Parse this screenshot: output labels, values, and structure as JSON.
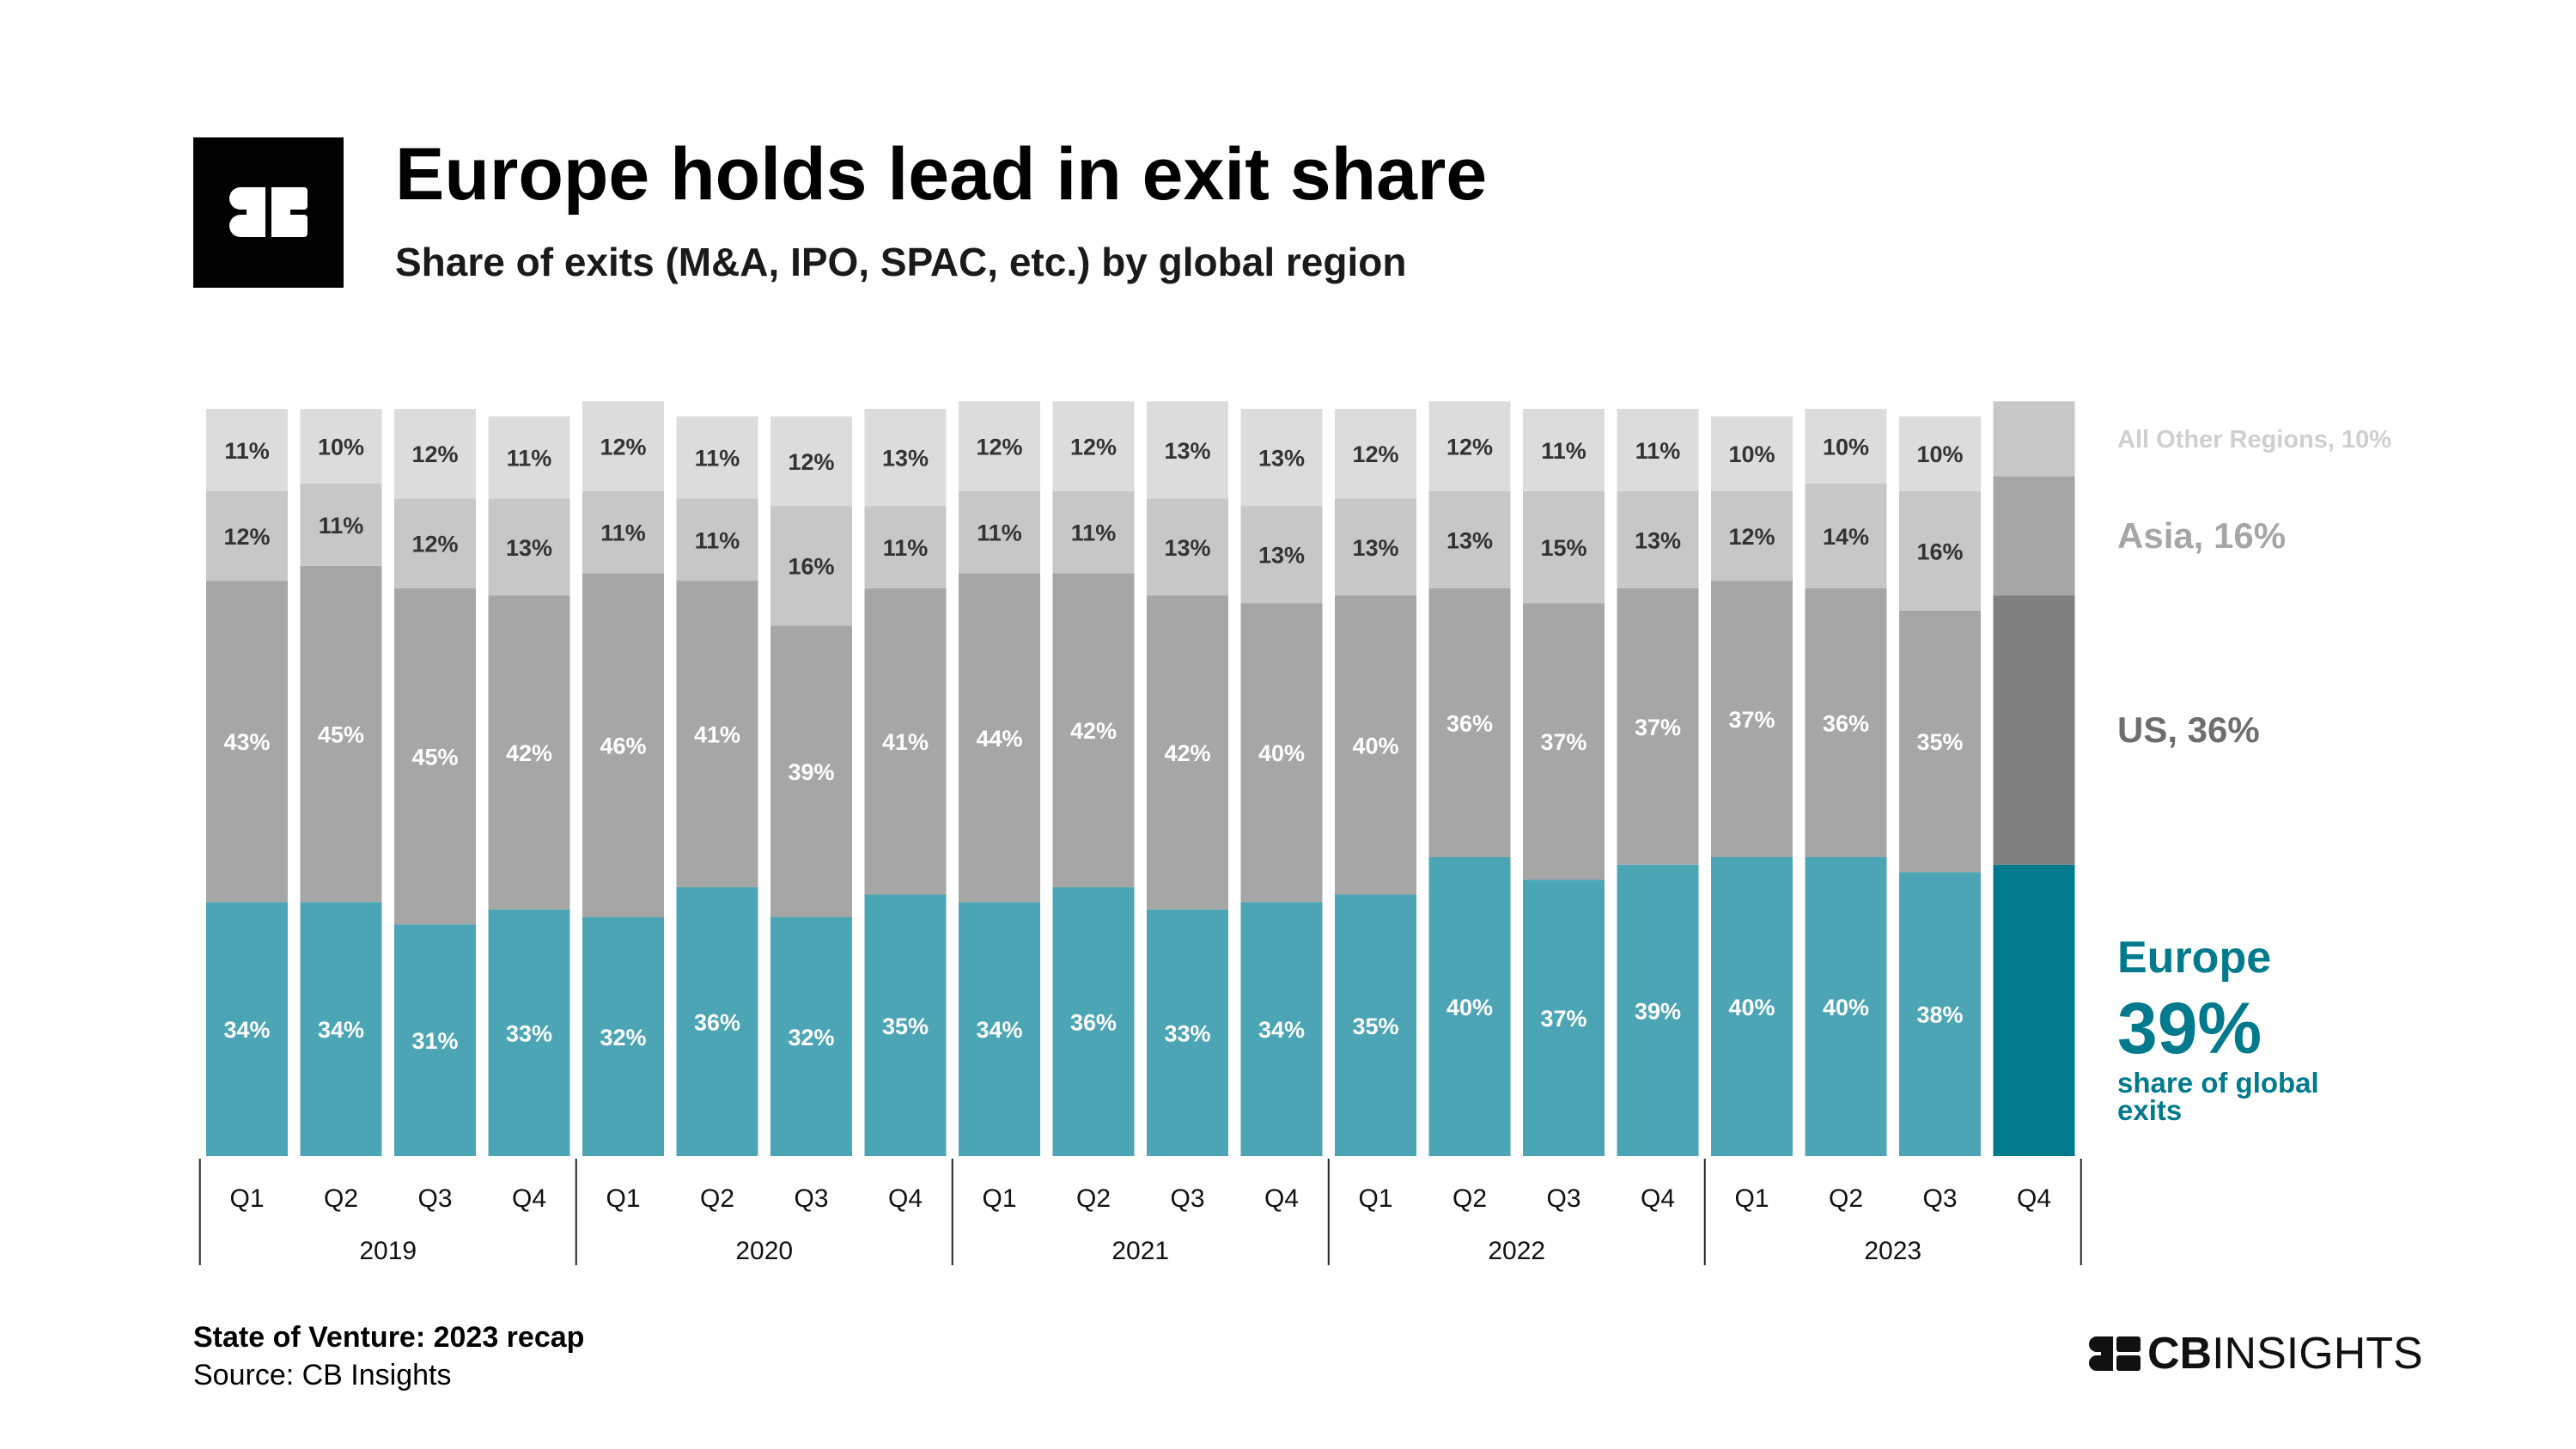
{
  "header": {
    "title": "Europe holds lead in exit share",
    "subtitle": "Share of exits (M&A, IPO, SPAC, etc.) by global region"
  },
  "footer": {
    "report": "State of Venture: 2023 recap",
    "source": "Source: CB Insights",
    "brand_bold": "CB",
    "brand_light": "INSIGHTS"
  },
  "colors": {
    "europe": "#4ca5b5",
    "us": "#a6a6a6",
    "asia": "#c7c7c7",
    "other": "#dcdcdc",
    "europe_highlight": "#007a8c",
    "us_highlight": "#7f7f7f",
    "asia_highlight": "#a6a6a6",
    "other_highlight": "#c7c7c7"
  },
  "chart_data": {
    "type": "bar",
    "stacked": true,
    "categories": [
      "Q1",
      "Q2",
      "Q3",
      "Q4",
      "Q1",
      "Q2",
      "Q3",
      "Q4",
      "Q1",
      "Q2",
      "Q3",
      "Q4",
      "Q1",
      "Q2",
      "Q3",
      "Q4",
      "Q1",
      "Q2",
      "Q3",
      "Q4"
    ],
    "years": [
      {
        "label": "2019",
        "quarters": 4
      },
      {
        "label": "2020",
        "quarters": 4
      },
      {
        "label": "2021",
        "quarters": 4
      },
      {
        "label": "2022",
        "quarters": 4
      },
      {
        "label": "2023",
        "quarters": 4
      }
    ],
    "series": [
      {
        "name": "Europe",
        "values": [
          34,
          34,
          31,
          33,
          32,
          36,
          32,
          35,
          34,
          36,
          33,
          34,
          35,
          40,
          37,
          39,
          40,
          40,
          38,
          39
        ]
      },
      {
        "name": "US",
        "values": [
          43,
          45,
          45,
          42,
          46,
          41,
          39,
          41,
          44,
          42,
          42,
          40,
          40,
          36,
          37,
          37,
          37,
          36,
          35,
          36
        ]
      },
      {
        "name": "Asia",
        "values": [
          12,
          11,
          12,
          13,
          11,
          11,
          16,
          11,
          11,
          11,
          13,
          13,
          13,
          13,
          15,
          13,
          12,
          14,
          16,
          16
        ]
      },
      {
        "name": "All Other Regions",
        "values": [
          11,
          10,
          12,
          11,
          12,
          11,
          12,
          13,
          12,
          12,
          13,
          13,
          12,
          12,
          11,
          11,
          10,
          10,
          10,
          10
        ]
      }
    ],
    "ylim": [
      0,
      100
    ],
    "labels_shown_on_last_bar": false,
    "legend": {
      "placement": "right",
      "other": "All Other Regions, 10%",
      "asia": "Asia, 16%",
      "us": "US, 36%",
      "europe_name": "Europe",
      "europe_value": "39%",
      "europe_caption_1": "share of global",
      "europe_caption_2": "exits"
    }
  }
}
